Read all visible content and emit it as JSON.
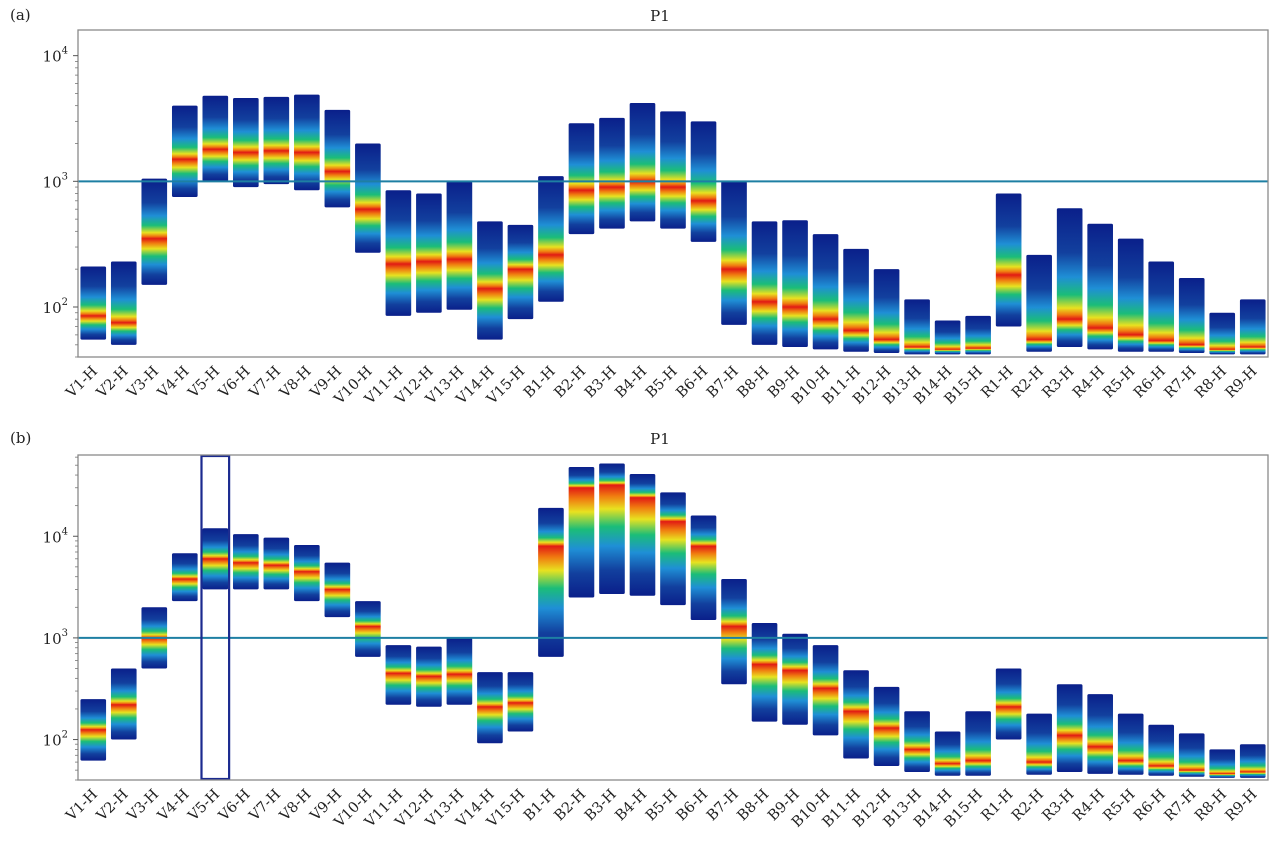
{
  "chart_data": [
    {
      "type": "heatmap",
      "panel_label": "(a)",
      "title": "P1",
      "y_scale": "log",
      "ylim": [
        40,
        16000
      ],
      "y_ticks": [
        {
          "value": 100,
          "base": "10",
          "exp": "2"
        },
        {
          "value": 1000,
          "base": "10",
          "exp": "3"
        },
        {
          "value": 10000,
          "base": "10",
          "exp": "4"
        }
      ],
      "reference_line": 1000,
      "reference_color": "#1e7fa3",
      "categories": [
        "V1-H",
        "V2-H",
        "V3-H",
        "V4-H",
        "V5-H",
        "V6-H",
        "V7-H",
        "V8-H",
        "V9-H",
        "V10-H",
        "V11-H",
        "V12-H",
        "V13-H",
        "V14-H",
        "V15-H",
        "B1-H",
        "B2-H",
        "B3-H",
        "B4-H",
        "B5-H",
        "B6-H",
        "B7-H",
        "B8-H",
        "B9-H",
        "B10-H",
        "B11-H",
        "B12-H",
        "B13-H",
        "B14-H",
        "B15-H",
        "R1-H",
        "R2-H",
        "R3-H",
        "R4-H",
        "R5-H",
        "R6-H",
        "R7-H",
        "R8-H",
        "R9-H"
      ],
      "ranges": [
        {
          "low": 55,
          "high": 210,
          "peak": 85
        },
        {
          "low": 50,
          "high": 230,
          "peak": 75
        },
        {
          "low": 150,
          "high": 1050,
          "peak": 350
        },
        {
          "low": 750,
          "high": 4000,
          "peak": 1500
        },
        {
          "low": 1000,
          "high": 4800,
          "peak": 1800
        },
        {
          "low": 900,
          "high": 4600,
          "peak": 1700
        },
        {
          "low": 950,
          "high": 4700,
          "peak": 1750
        },
        {
          "low": 850,
          "high": 4900,
          "peak": 1700
        },
        {
          "low": 620,
          "high": 3700,
          "peak": 1200
        },
        {
          "low": 270,
          "high": 2000,
          "peak": 600
        },
        {
          "low": 85,
          "high": 850,
          "peak": 220
        },
        {
          "low": 90,
          "high": 800,
          "peak": 230
        },
        {
          "low": 95,
          "high": 1000,
          "peak": 240
        },
        {
          "low": 55,
          "high": 480,
          "peak": 140
        },
        {
          "low": 80,
          "high": 450,
          "peak": 200
        },
        {
          "low": 110,
          "high": 1100,
          "peak": 260
        },
        {
          "low": 380,
          "high": 2900,
          "peak": 850
        },
        {
          "low": 420,
          "high": 3200,
          "peak": 900
        },
        {
          "low": 480,
          "high": 4200,
          "peak": 1000
        },
        {
          "low": 420,
          "high": 3600,
          "peak": 900
        },
        {
          "low": 330,
          "high": 3000,
          "peak": 700
        },
        {
          "low": 72,
          "high": 1000,
          "peak": 200
        },
        {
          "low": 50,
          "high": 480,
          "peak": 110
        },
        {
          "low": 48,
          "high": 490,
          "peak": 100
        },
        {
          "low": 46,
          "high": 380,
          "peak": 80
        },
        {
          "low": 44,
          "high": 290,
          "peak": 65
        },
        {
          "low": 43,
          "high": 200,
          "peak": 55
        },
        {
          "low": 42,
          "high": 115,
          "peak": 48
        },
        {
          "low": 42,
          "high": 78,
          "peak": 46
        },
        {
          "low": 42,
          "high": 85,
          "peak": 47
        },
        {
          "low": 70,
          "high": 800,
          "peak": 180
        },
        {
          "low": 44,
          "high": 260,
          "peak": 55
        },
        {
          "low": 48,
          "high": 610,
          "peak": 80
        },
        {
          "low": 46,
          "high": 460,
          "peak": 68
        },
        {
          "low": 44,
          "high": 350,
          "peak": 60
        },
        {
          "low": 44,
          "high": 230,
          "peak": 54
        },
        {
          "low": 43,
          "high": 170,
          "peak": 50
        },
        {
          "low": 42,
          "high": 90,
          "peak": 46
        },
        {
          "low": 42,
          "high": 115,
          "peak": 48
        }
      ]
    },
    {
      "type": "heatmap",
      "panel_label": "(b)",
      "title": "P1",
      "y_scale": "log",
      "ylim": [
        40,
        63000
      ],
      "y_ticks": [
        {
          "value": 100,
          "base": "10",
          "exp": "2"
        },
        {
          "value": 1000,
          "base": "10",
          "exp": "3"
        },
        {
          "value": 10000,
          "base": "10",
          "exp": "4"
        }
      ],
      "reference_line": 1000,
      "reference_color": "#1e7fa3",
      "highlight_category": "V5-H",
      "highlight_color": "#1b2a8f",
      "categories": [
        "V1-H",
        "V2-H",
        "V3-H",
        "V4-H",
        "V5-H",
        "V6-H",
        "V7-H",
        "V8-H",
        "V9-H",
        "V10-H",
        "V11-H",
        "V12-H",
        "V13-H",
        "V14-H",
        "V15-H",
        "B1-H",
        "B2-H",
        "B3-H",
        "B4-H",
        "B5-H",
        "B6-H",
        "B7-H",
        "B8-H",
        "B9-H",
        "B10-H",
        "B11-H",
        "B12-H",
        "B13-H",
        "B14-H",
        "B15-H",
        "R1-H",
        "R2-H",
        "R3-H",
        "R4-H",
        "R5-H",
        "R6-H",
        "R7-H",
        "R8-H",
        "R9-H"
      ],
      "ranges": [
        {
          "low": 62,
          "high": 250,
          "peak": 125
        },
        {
          "low": 100,
          "high": 500,
          "peak": 220
        },
        {
          "low": 500,
          "high": 2000,
          "peak": 1000
        },
        {
          "low": 2300,
          "high": 6800,
          "peak": 3800
        },
        {
          "low": 3000,
          "high": 12000,
          "peak": 6000
        },
        {
          "low": 3000,
          "high": 10500,
          "peak": 5500
        },
        {
          "low": 3000,
          "high": 9700,
          "peak": 5200
        },
        {
          "low": 2300,
          "high": 8200,
          "peak": 4500
        },
        {
          "low": 1600,
          "high": 5500,
          "peak": 3000
        },
        {
          "low": 650,
          "high": 2300,
          "peak": 1300
        },
        {
          "low": 220,
          "high": 850,
          "peak": 450
        },
        {
          "low": 210,
          "high": 820,
          "peak": 420
        },
        {
          "low": 220,
          "high": 1000,
          "peak": 440
        },
        {
          "low": 92,
          "high": 460,
          "peak": 210
        },
        {
          "low": 120,
          "high": 460,
          "peak": 230
        },
        {
          "low": 650,
          "high": 19000,
          "peak": 8000
        },
        {
          "low": 2500,
          "high": 48000,
          "peak": 30000
        },
        {
          "low": 2700,
          "high": 52000,
          "peak": 32000
        },
        {
          "low": 2600,
          "high": 41000,
          "peak": 24000
        },
        {
          "low": 2100,
          "high": 27000,
          "peak": 14000
        },
        {
          "low": 1500,
          "high": 16000,
          "peak": 8000
        },
        {
          "low": 350,
          "high": 3800,
          "peak": 1300
        },
        {
          "low": 150,
          "high": 1400,
          "peak": 550
        },
        {
          "low": 140,
          "high": 1100,
          "peak": 480
        },
        {
          "low": 110,
          "high": 850,
          "peak": 320
        },
        {
          "low": 65,
          "high": 480,
          "peak": 190
        },
        {
          "low": 55,
          "high": 330,
          "peak": 130
        },
        {
          "low": 48,
          "high": 190,
          "peak": 80
        },
        {
          "low": 44,
          "high": 120,
          "peak": 58
        },
        {
          "low": 44,
          "high": 190,
          "peak": 62
        },
        {
          "low": 100,
          "high": 500,
          "peak": 210
        },
        {
          "low": 45,
          "high": 180,
          "peak": 60
        },
        {
          "low": 48,
          "high": 350,
          "peak": 110
        },
        {
          "low": 46,
          "high": 280,
          "peak": 85
        },
        {
          "low": 45,
          "high": 180,
          "peak": 62
        },
        {
          "low": 44,
          "high": 140,
          "peak": 55
        },
        {
          "low": 43,
          "high": 115,
          "peak": 50
        },
        {
          "low": 42,
          "high": 80,
          "peak": 46
        },
        {
          "low": 42,
          "high": 90,
          "peak": 48
        }
      ]
    }
  ]
}
